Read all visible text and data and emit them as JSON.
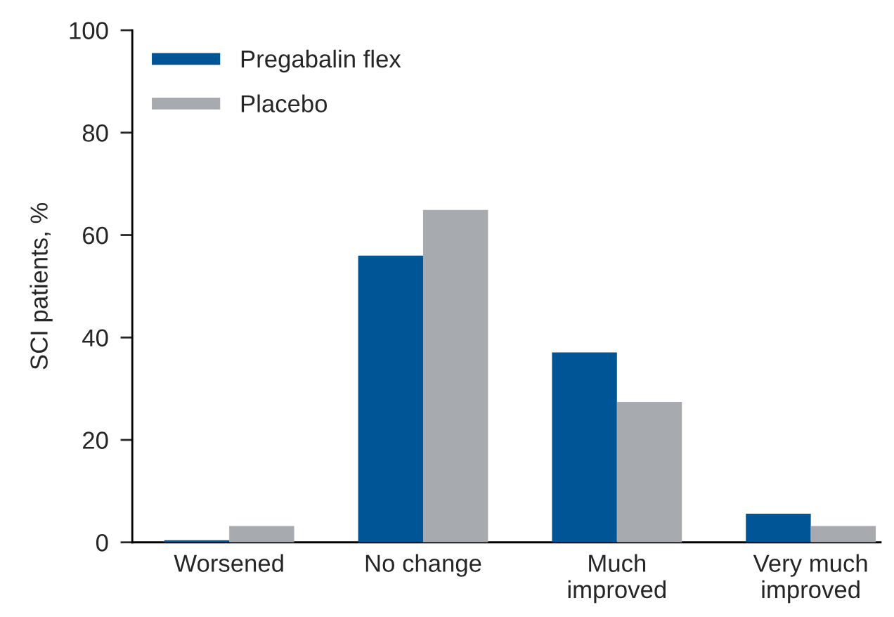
{
  "chart_data": {
    "type": "bar",
    "ylabel": "SCI patients, %",
    "categories": [
      "Worsened",
      "No change",
      "Much\nimproved",
      "Very much\nimproved"
    ],
    "series": [
      {
        "name": "Pregabalin flex",
        "color": "#005596",
        "values": [
          0.4,
          56,
          37.1,
          5.6
        ]
      },
      {
        "name": "Placebo",
        "color": "#a7abaf",
        "values": [
          3.2,
          64.9,
          27.4,
          3.2
        ]
      }
    ],
    "ylim": [
      0,
      100
    ],
    "yticks": [
      0,
      20,
      40,
      60,
      80,
      100
    ],
    "grid": false,
    "legend": "top left"
  }
}
